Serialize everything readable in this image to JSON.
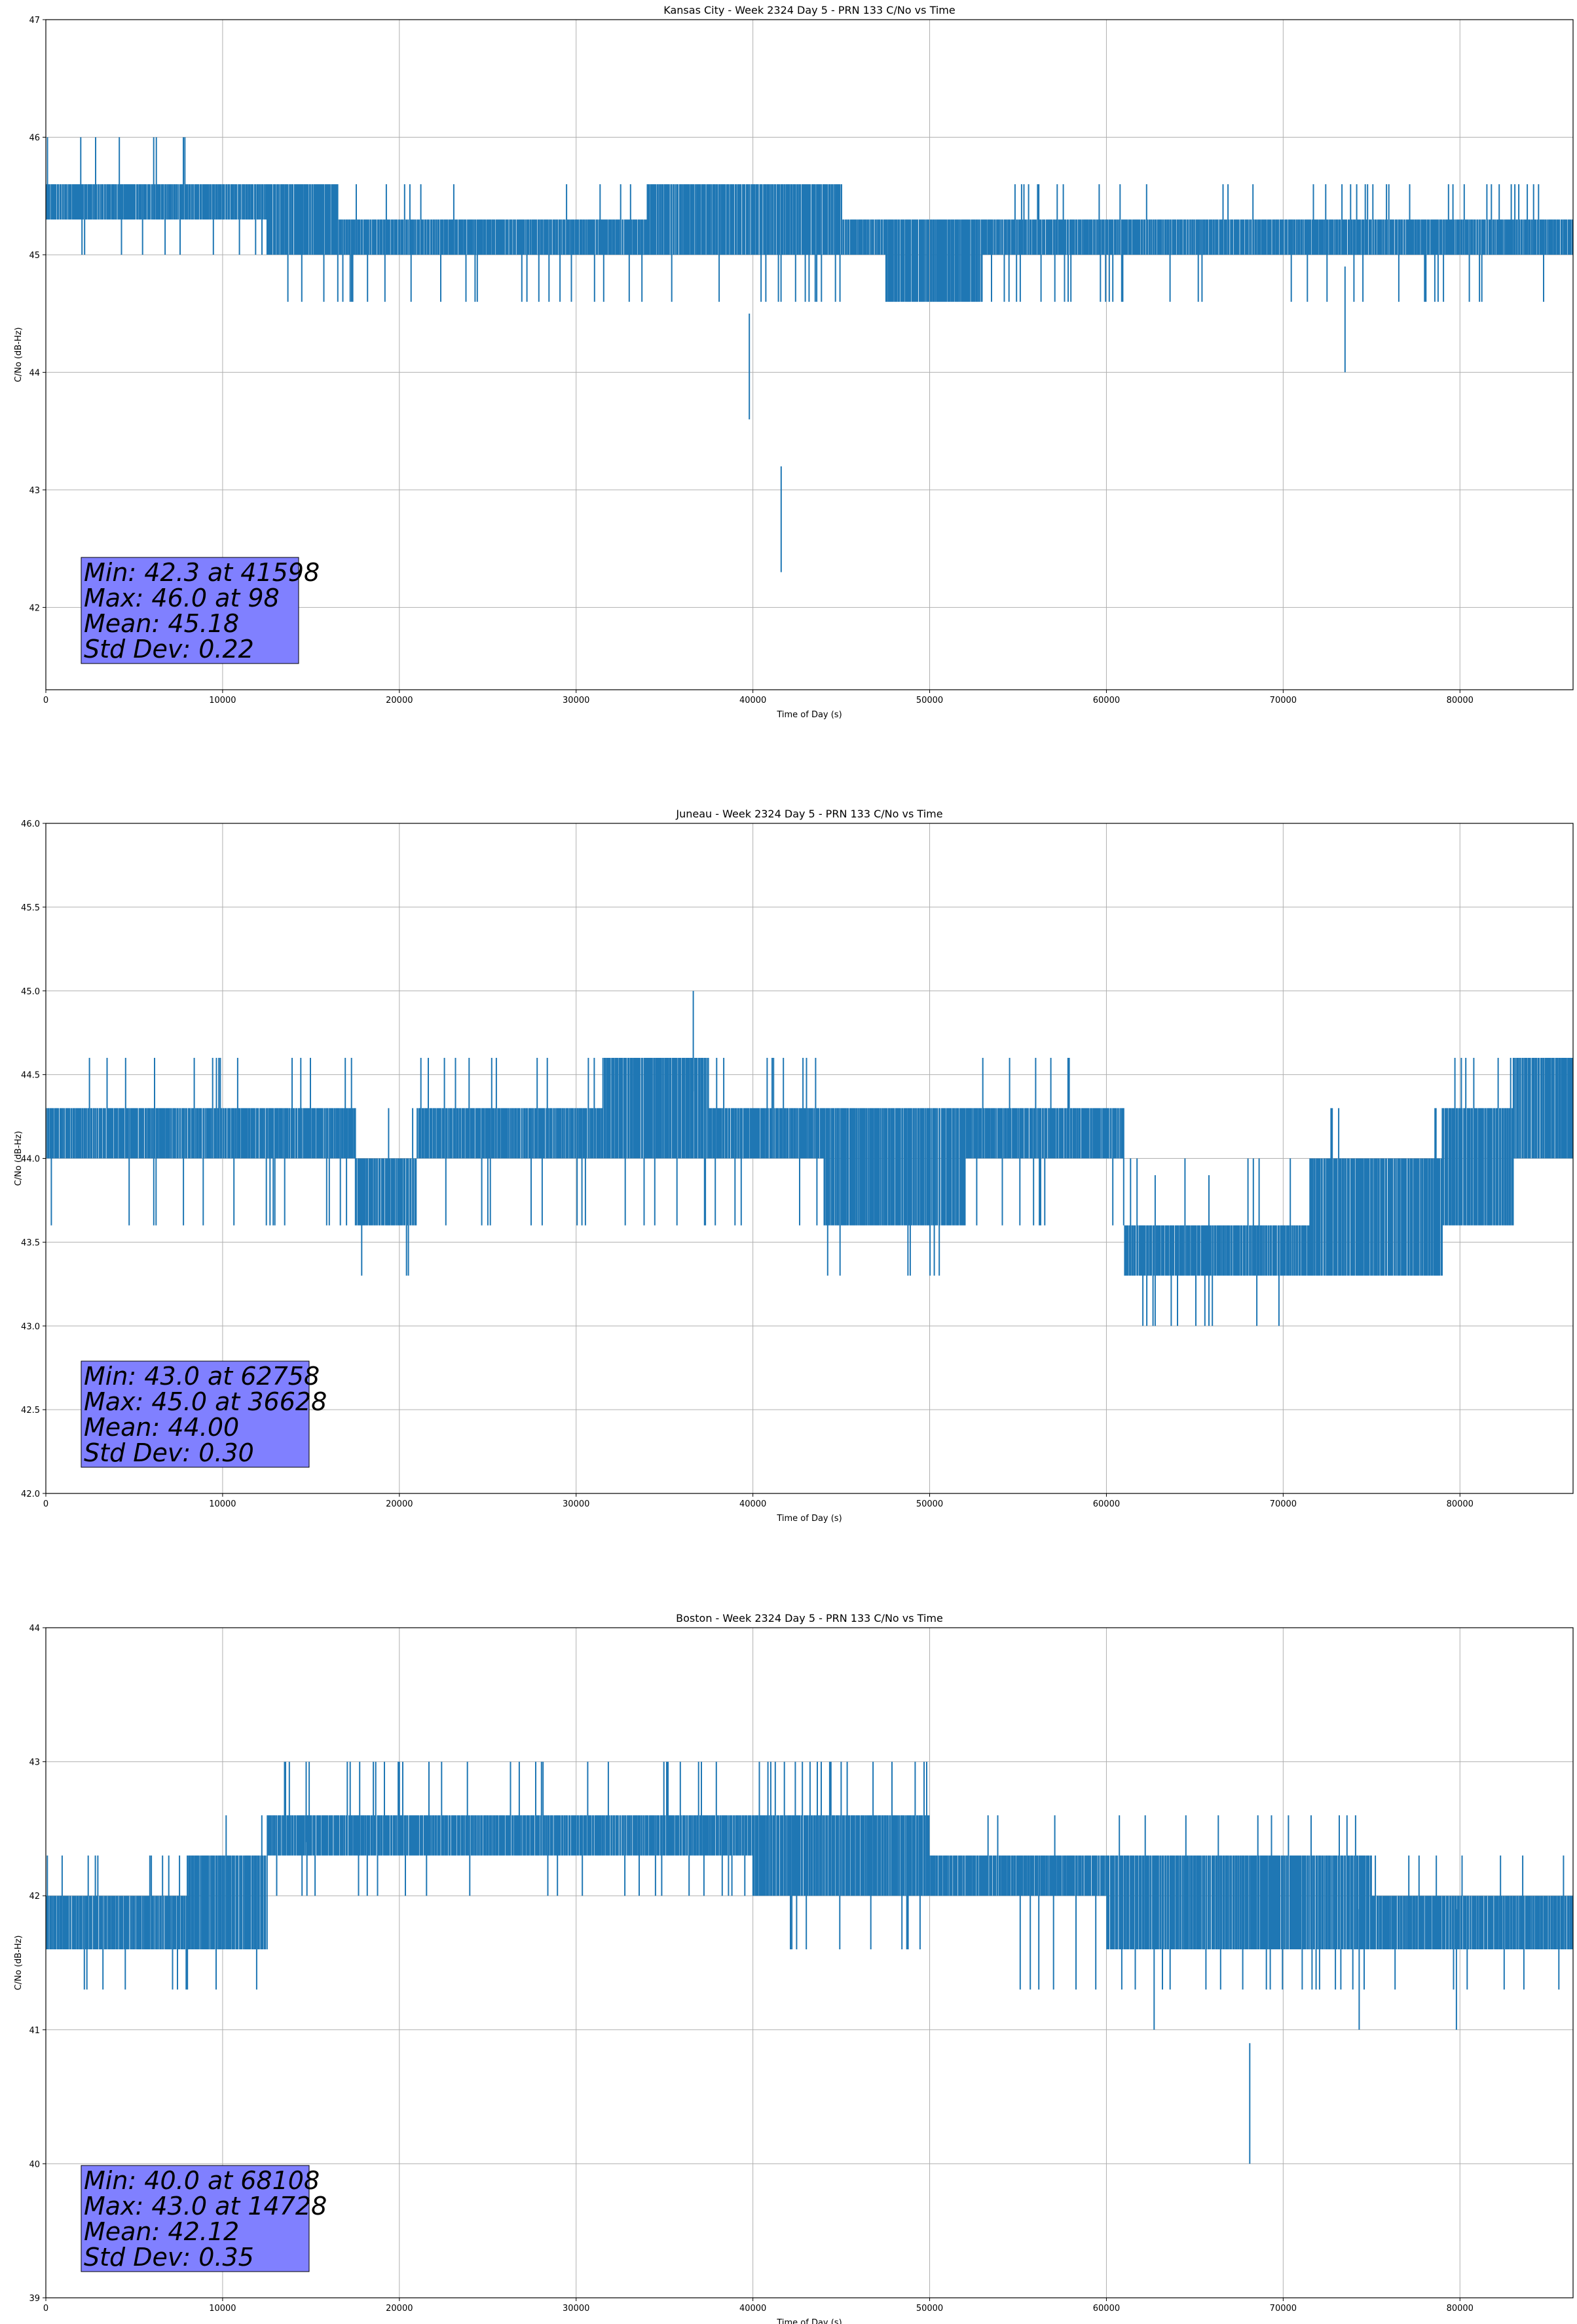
{
  "figure": {
    "background": "#ffffff"
  },
  "colors": {
    "series": "#1f77b4",
    "grid": "#b0b0b0",
    "stats_box": "#8080ff",
    "axis": "#000000"
  },
  "chart_data": [
    {
      "type": "line",
      "title": "Kansas City - Week 2324 Day 5 - PRN 133 C/No vs Time",
      "xlabel": "Time of Day (s)",
      "ylabel": "C/No (dB-Hz)",
      "xlim": [
        0,
        86400
      ],
      "ylim": [
        41.3,
        47.0
      ],
      "xticks": [
        0,
        10000,
        20000,
        30000,
        40000,
        50000,
        60000,
        70000,
        80000
      ],
      "xtick_labels": [
        "0",
        "10000",
        "20000",
        "30000",
        "40000",
        "50000",
        "60000",
        "70000",
        "80000"
      ],
      "yticks": [
        42,
        43,
        44,
        45,
        46,
        47
      ],
      "ytick_labels": [
        "42",
        "43",
        "44",
        "45",
        "46",
        "47"
      ],
      "grid": true,
      "series": [
        {
          "values_description_segments": [
            {
              "x_start": 0,
              "x_end": 8000,
              "y_low": 45.3,
              "y_high": 45.6,
              "spike_low": 45.0,
              "spike_high": 46.0
            },
            {
              "x_start": 8000,
              "x_end": 12500,
              "y_low": 45.3,
              "y_high": 45.6,
              "spike_low": 45.0,
              "spike_high": 45.6
            },
            {
              "x_start": 12500,
              "x_end": 16500,
              "y_low": 45.0,
              "y_high": 45.6,
              "spike_low": 44.6,
              "spike_high": 45.6
            },
            {
              "x_start": 16500,
              "x_end": 22500,
              "y_low": 45.0,
              "y_high": 45.3,
              "spike_low": 44.6,
              "spike_high": 45.6
            },
            {
              "x_start": 22500,
              "x_end": 34000,
              "y_low": 45.0,
              "y_high": 45.3,
              "spike_low": 44.6,
              "spike_high": 45.6
            },
            {
              "x_start": 34000,
              "x_end": 45000,
              "y_low": 45.0,
              "y_high": 45.6,
              "spike_low": 44.6,
              "spike_high": 45.6
            },
            {
              "x_start": 45000,
              "x_end": 47500,
              "y_low": 45.0,
              "y_high": 45.3,
              "spike_low": 45.0,
              "spike_high": 45.3
            },
            {
              "x_start": 47500,
              "x_end": 53000,
              "y_low": 44.6,
              "y_high": 45.3,
              "spike_low": 44.6,
              "spike_high": 45.3
            },
            {
              "x_start": 53000,
              "x_end": 86400,
              "y_low": 45.0,
              "y_high": 45.3,
              "spike_low": 44.6,
              "spike_high": 45.6
            }
          ],
          "extremes": [
            {
              "x": 39800,
              "y": 43.6
            },
            {
              "x": 41598,
              "y": 42.3
            },
            {
              "x": 73500,
              "y": 44.0
            }
          ]
        }
      ],
      "stats": [
        "Min: 42.3 at 41598",
        "Max: 46.0 at 98",
        "Mean: 45.18",
        "Std Dev: 0.22"
      ]
    },
    {
      "type": "line",
      "title": "Juneau - Week 2324 Day 5 - PRN 133 C/No vs Time",
      "xlabel": "Time of Day (s)",
      "ylabel": "C/No (dB-Hz)",
      "xlim": [
        0,
        86400
      ],
      "ylim": [
        42.0,
        46.0
      ],
      "xticks": [
        0,
        10000,
        20000,
        30000,
        40000,
        50000,
        60000,
        70000,
        80000
      ],
      "xtick_labels": [
        "0",
        "10000",
        "20000",
        "30000",
        "40000",
        "50000",
        "60000",
        "70000",
        "80000"
      ],
      "yticks": [
        42.0,
        42.5,
        43.0,
        43.5,
        44.0,
        44.5,
        45.0,
        45.5,
        46.0
      ],
      "ytick_labels": [
        "42.0",
        "42.5",
        "43.0",
        "43.5",
        "44.0",
        "44.5",
        "45.0",
        "45.5",
        "46.0"
      ],
      "grid": true,
      "series": [
        {
          "values_description_segments": [
            {
              "x_start": 0,
              "x_end": 6000,
              "y_low": 44.0,
              "y_high": 44.3,
              "spike_low": 43.6,
              "spike_high": 44.6
            },
            {
              "x_start": 6000,
              "x_end": 17500,
              "y_low": 44.0,
              "y_high": 44.3,
              "spike_low": 43.6,
              "spike_high": 44.6
            },
            {
              "x_start": 17500,
              "x_end": 21000,
              "y_low": 43.6,
              "y_high": 44.0,
              "spike_low": 43.3,
              "spike_high": 44.3
            },
            {
              "x_start": 21000,
              "x_end": 31500,
              "y_low": 44.0,
              "y_high": 44.3,
              "spike_low": 43.6,
              "spike_high": 44.6
            },
            {
              "x_start": 31500,
              "x_end": 37500,
              "y_low": 44.0,
              "y_high": 44.6,
              "spike_low": 43.6,
              "spike_high": 44.6
            },
            {
              "x_start": 37500,
              "x_end": 44000,
              "y_low": 44.0,
              "y_high": 44.3,
              "spike_low": 43.6,
              "spike_high": 44.6
            },
            {
              "x_start": 44000,
              "x_end": 52000,
              "y_low": 43.6,
              "y_high": 44.3,
              "spike_low": 43.3,
              "spike_high": 44.3
            },
            {
              "x_start": 52000,
              "x_end": 61000,
              "y_low": 44.0,
              "y_high": 44.3,
              "spike_low": 43.6,
              "spike_high": 44.6
            },
            {
              "x_start": 61000,
              "x_end": 71500,
              "y_low": 43.3,
              "y_high": 43.6,
              "spike_low": 43.0,
              "spike_high": 44.0
            },
            {
              "x_start": 71500,
              "x_end": 79000,
              "y_low": 43.3,
              "y_high": 44.0,
              "spike_low": 43.3,
              "spike_high": 44.3
            },
            {
              "x_start": 79000,
              "x_end": 83000,
              "y_low": 43.6,
              "y_high": 44.3,
              "spike_low": 43.6,
              "spike_high": 44.6
            },
            {
              "x_start": 83000,
              "x_end": 86400,
              "y_low": 44.0,
              "y_high": 44.6,
              "spike_low": 44.0,
              "spike_high": 44.6
            }
          ],
          "extremes": [
            {
              "x": 36628,
              "y": 45.0
            },
            {
              "x": 62758,
              "y": 43.0
            },
            {
              "x": 65800,
              "y": 43.0
            }
          ]
        }
      ],
      "stats": [
        "Min: 43.0 at 62758",
        "Max: 45.0 at 36628",
        "Mean: 44.00",
        "Std Dev: 0.30"
      ]
    },
    {
      "type": "line",
      "title": "Boston - Week 2324 Day 5 - PRN 133 C/No vs Time",
      "xlabel": "Time of Day (s)",
      "ylabel": "C/No (dB-Hz)",
      "xlim": [
        0,
        86400
      ],
      "ylim": [
        39.0,
        44.0
      ],
      "xticks": [
        0,
        10000,
        20000,
        30000,
        40000,
        50000,
        60000,
        70000,
        80000
      ],
      "xtick_labels": [
        "0",
        "10000",
        "20000",
        "30000",
        "40000",
        "50000",
        "60000",
        "70000",
        "80000"
      ],
      "yticks": [
        39,
        40,
        41,
        42,
        43,
        44
      ],
      "ytick_labels": [
        "39",
        "40",
        "41",
        "42",
        "43",
        "44"
      ],
      "grid": true,
      "series": [
        {
          "values_description_segments": [
            {
              "x_start": 0,
              "x_end": 8000,
              "y_low": 41.6,
              "y_high": 42.0,
              "spike_low": 41.3,
              "spike_high": 42.3
            },
            {
              "x_start": 8000,
              "x_end": 12500,
              "y_low": 41.6,
              "y_high": 42.3,
              "spike_low": 41.3,
              "spike_high": 42.6
            },
            {
              "x_start": 12500,
              "x_end": 19000,
              "y_low": 42.3,
              "y_high": 42.6,
              "spike_low": 42.0,
              "spike_high": 43.0
            },
            {
              "x_start": 19000,
              "x_end": 40000,
              "y_low": 42.3,
              "y_high": 42.6,
              "spike_low": 42.0,
              "spike_high": 43.0
            },
            {
              "x_start": 40000,
              "x_end": 50000,
              "y_low": 42.0,
              "y_high": 42.6,
              "spike_low": 41.6,
              "spike_high": 43.0
            },
            {
              "x_start": 50000,
              "x_end": 60000,
              "y_low": 42.0,
              "y_high": 42.3,
              "spike_low": 41.3,
              "spike_high": 42.6
            },
            {
              "x_start": 60000,
              "x_end": 75000,
              "y_low": 41.6,
              "y_high": 42.3,
              "spike_low": 41.3,
              "spike_high": 42.6
            },
            {
              "x_start": 75000,
              "x_end": 86400,
              "y_low": 41.6,
              "y_high": 42.0,
              "spike_low": 41.3,
              "spike_high": 42.3
            }
          ],
          "extremes": [
            {
              "x": 14728,
              "y": 43.0
            },
            {
              "x": 62700,
              "y": 41.0
            },
            {
              "x": 68108,
              "y": 40.0
            },
            {
              "x": 74300,
              "y": 41.0
            },
            {
              "x": 79800,
              "y": 41.0
            }
          ]
        }
      ],
      "stats": [
        "Min: 40.0 at 68108",
        "Max: 43.0 at 14728",
        "Mean: 42.12",
        "Std Dev: 0.35"
      ]
    }
  ]
}
